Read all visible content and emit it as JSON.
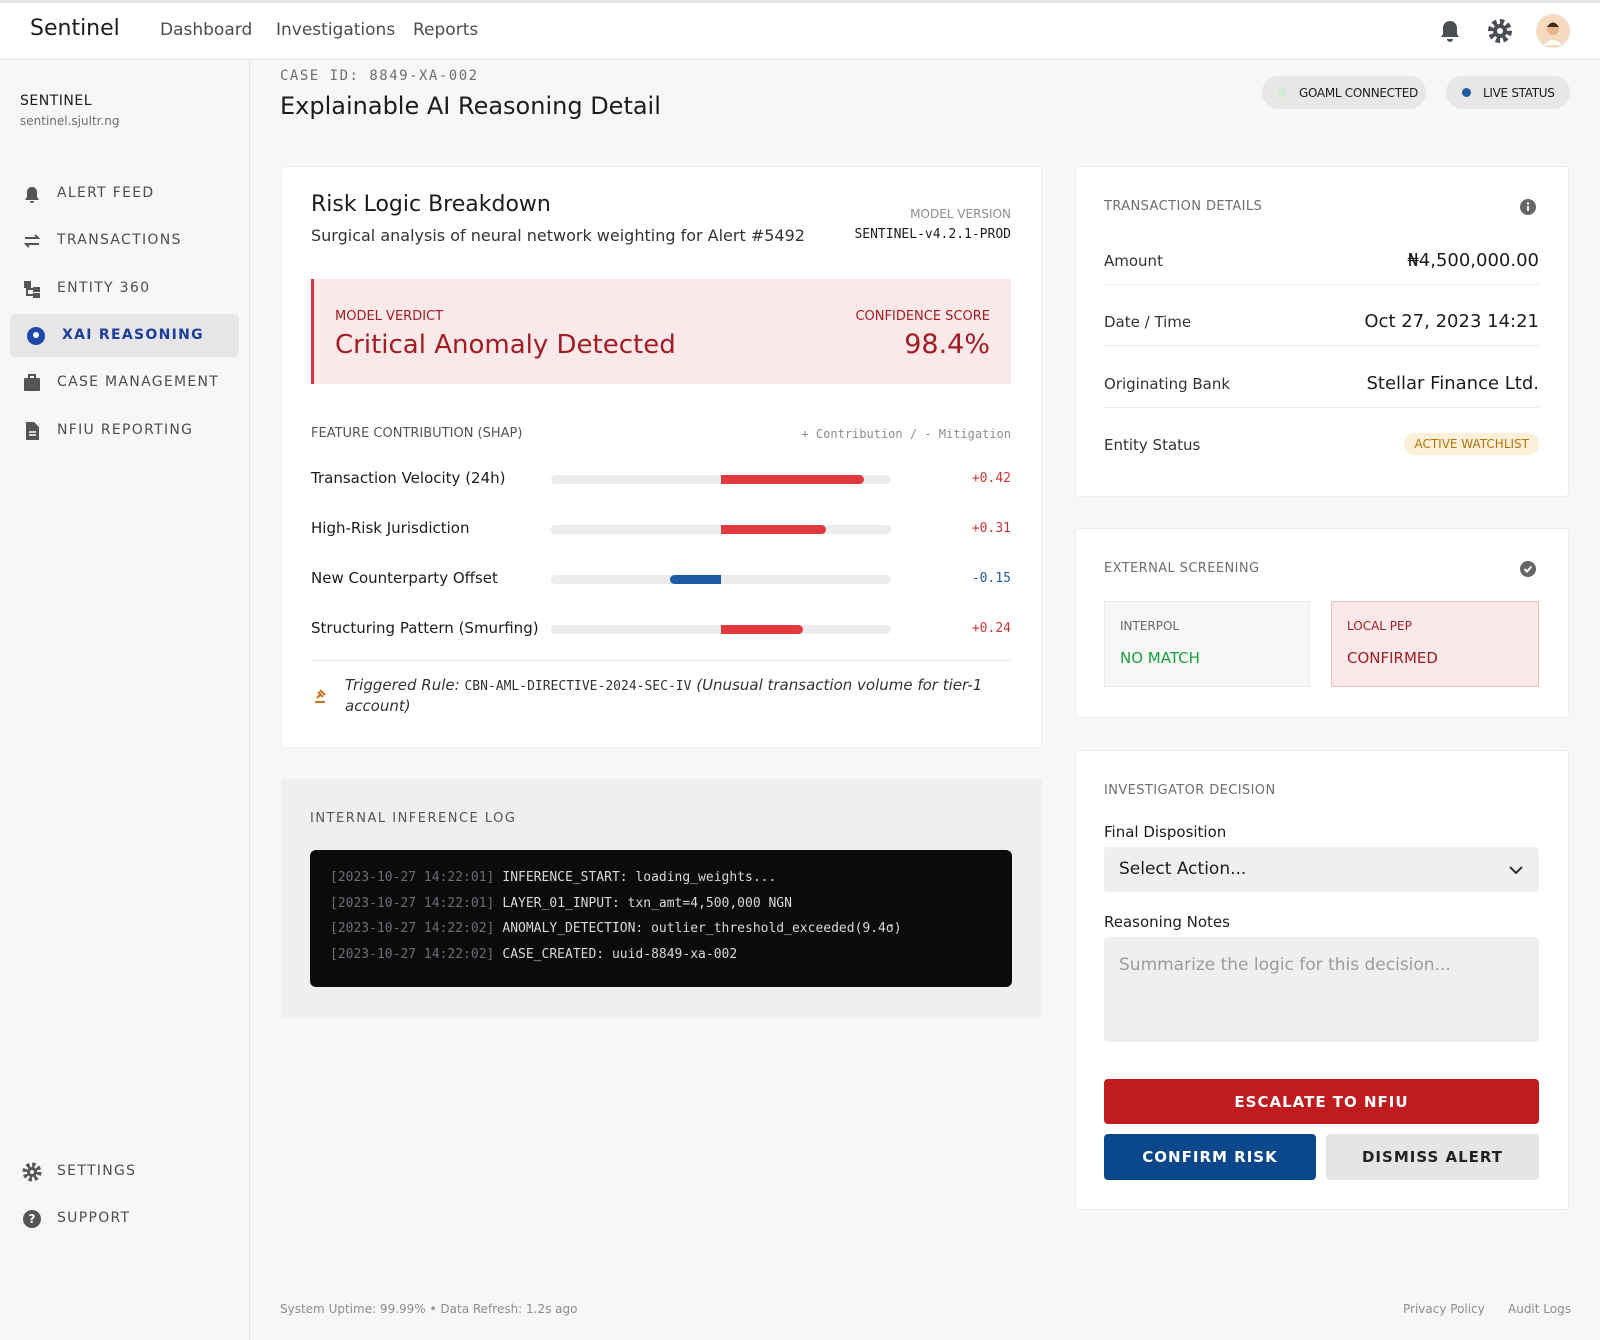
{
  "nav": {
    "brand": "Sentinel",
    "links": [
      "Dashboard",
      "Investigations",
      "Reports"
    ]
  },
  "sidebar": {
    "org": "SENTINEL",
    "domain": "sentinel.sjultr.ng",
    "items": [
      "ALERT FEED",
      "TRANSACTIONS",
      "ENTITY 360",
      "XAI REASONING",
      "CASE MANAGEMENT",
      "NFIU REPORTING"
    ],
    "bottom_items": [
      "SETTINGS",
      "SUPPORT"
    ]
  },
  "header": {
    "case_id": "CASE ID: 8849-XA-002",
    "title": "Explainable AI Reasoning Detail",
    "badges": [
      "GOAML CONNECTED",
      "LIVE STATUS"
    ]
  },
  "risk": {
    "title": "Risk Logic Breakdown",
    "subtitle": "Surgical analysis of neural network weighting for Alert #5492",
    "model_version_label": "MODEL VERSION",
    "model_version": "SENTINEL-v4.2.1-PROD",
    "verdict_label": "MODEL VERDICT",
    "verdict": "Critical Anomaly Detected",
    "confidence_label": "CONFIDENCE SCORE",
    "confidence": "98.4%",
    "shap_title": "FEATURE CONTRIBUTION (SHAP)",
    "shap_legend": "+ Contribution / - Mitigation",
    "features": [
      {
        "name": "Transaction Velocity (24h)",
        "value": 0.42,
        "label": "+0.42"
      },
      {
        "name": "High-Risk Jurisdiction",
        "value": 0.31,
        "label": "+0.31"
      },
      {
        "name": "New Counterparty Offset",
        "value": -0.15,
        "label": "-0.15"
      },
      {
        "name": "Structuring Pattern (Smurfing)",
        "value": 0.24,
        "label": "+0.24"
      }
    ],
    "rule_prefix": "Triggered Rule:",
    "rule_code": "CBN-AML-DIRECTIVE-2024-SEC-IV",
    "rule_note": "(Unusual transaction volume for tier-1",
    "rule_note_2": "account)"
  },
  "log": {
    "title": "INTERNAL INFERENCE LOG",
    "lines": [
      {
        "time": "[2023-10-27 14:22:01]",
        "text": "INFERENCE_START: loading_weights..."
      },
      {
        "time": "[2023-10-27 14:22:01]",
        "text": "LAYER_01_INPUT: txn_amt=4,500,000 NGN"
      },
      {
        "time": "[2023-10-27 14:22:02]",
        "text": "ANOMALY_DETECTION: outlier_threshold_exceeded(9.4σ)"
      },
      {
        "time": "[2023-10-27 14:22:02]",
        "text": "CASE_CREATED: uuid-8849-xa-002"
      }
    ]
  },
  "transaction": {
    "title": "TRANSACTION DETAILS",
    "rows": [
      [
        "Amount",
        "₦4,500,000.00"
      ],
      [
        "Date / Time",
        "Oct 27, 2023 14:21"
      ],
      [
        "Originating Bank",
        "Stellar Finance Ltd."
      ],
      [
        "Entity Status",
        "ACTIVE WATCHLIST"
      ]
    ]
  },
  "screening": {
    "title": "EXTERNAL SCREENING",
    "checks": [
      {
        "source": "INTERPOL",
        "result": "NO MATCH"
      },
      {
        "source": "LOCAL PEP",
        "result": "CONFIRMED"
      }
    ]
  },
  "decision": {
    "title": "INVESTIGATOR DECISION",
    "disposition_label": "Final Disposition",
    "disposition_placeholder": "Select Action...",
    "notes_label": "Reasoning Notes",
    "notes_placeholder": "Summarize the logic for this decision...",
    "buttons": [
      "ESCALATE TO NFIU",
      "CONFIRM RISK",
      "DISMISS ALERT"
    ]
  },
  "footer": {
    "status": "System Uptime: 99.99% • Data Refresh: 1.2s ago",
    "links": [
      "Privacy Policy",
      "Audit Logs"
    ]
  }
}
